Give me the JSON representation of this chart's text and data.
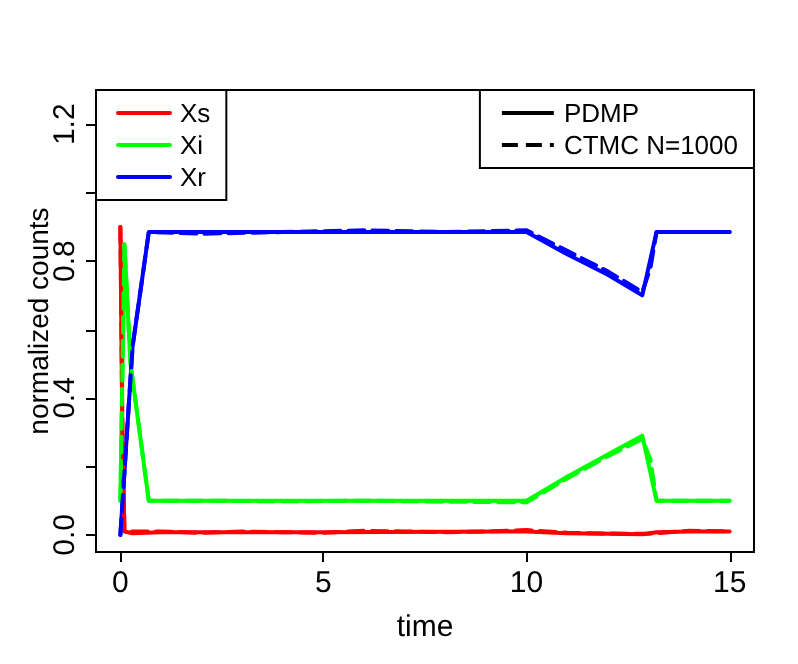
{
  "chart_data": {
    "type": "line",
    "xlabel": "time",
    "ylabel": "normalized counts",
    "xlim": [
      -0.6,
      15.6
    ],
    "xticks": [
      0,
      5,
      10,
      15
    ],
    "ylim": [
      -0.05,
      1.3
    ],
    "yticks": [
      {
        "value": 0,
        "label": "0.0"
      },
      {
        "value": 0.2,
        "label": null
      },
      0.4,
      {
        "value": 0.6,
        "label": null
      },
      0.8,
      {
        "value": 1.0,
        "label": null
      },
      1.2
    ],
    "grid": false,
    "legend": "top left",
    "marker": "none",
    "annotations": [
      "PDMP",
      "CTMC N=1000"
    ],
    "series": [
      {
        "name": "Xs",
        "color": "#ff0000",
        "line_style": "solid",
        "x": [
          0,
          0.05,
          0.1,
          0.3,
          1,
          5,
          10,
          11,
          12,
          12.85,
          13.2,
          14,
          15
        ],
        "values": [
          0.9,
          0.3,
          0.01,
          0.005,
          0.008,
          0.008,
          0.01,
          0.005,
          0.003,
          0.002,
          0.008,
          0.01,
          0.01
        ]
      },
      {
        "name": "Xi",
        "color": "#00ff00",
        "line_style": "solid",
        "x": [
          0,
          0.1,
          0.25,
          0.7,
          5,
          10,
          11,
          12,
          12.85,
          13.2,
          15
        ],
        "values": [
          0.1,
          0.85,
          0.5,
          0.1,
          0.1,
          0.1,
          0.17,
          0.235,
          0.29,
          0.1,
          0.1
        ]
      },
      {
        "name": "Xr",
        "color": "#0000ff",
        "line_style": "solid",
        "x": [
          0,
          0.3,
          0.7,
          10,
          11,
          12,
          12.85,
          13.2,
          15
        ],
        "values": [
          0,
          0.55,
          0.885,
          0.885,
          0.82,
          0.76,
          0.7,
          0.885,
          0.885
        ]
      },
      {
        "color": "#ff0000",
        "line_style": "dashed",
        "x": [
          0,
          0.05,
          0.1,
          1,
          2,
          3,
          4,
          5,
          6,
          7,
          8,
          9,
          10,
          11,
          12,
          13,
          14,
          15
        ],
        "values": [
          0.9,
          0.3,
          0.01,
          0.01,
          0.006,
          0.01,
          0.008,
          0.006,
          0.012,
          0.01,
          0.008,
          0.01,
          0.014,
          0.006,
          0.004,
          0.003,
          0.012,
          0.01
        ]
      },
      {
        "color": "#00ff00",
        "line_style": "dashed",
        "x": [
          0,
          0.1,
          0.25,
          0.7,
          2,
          4,
          6,
          8,
          10,
          11,
          12,
          12.85,
          13.05,
          13.2,
          15
        ],
        "values": [
          0.1,
          0.85,
          0.5,
          0.1,
          0.1,
          0.098,
          0.1,
          0.097,
          0.095,
          0.165,
          0.23,
          0.28,
          0.22,
          0.1,
          0.1
        ]
      },
      {
        "color": "#0000ff",
        "line_style": "dashed",
        "x": [
          0,
          0.3,
          0.7,
          2,
          4,
          6,
          8,
          10,
          11,
          12,
          12.85,
          13.05,
          13.2,
          15
        ],
        "values": [
          0,
          0.55,
          0.885,
          0.88,
          0.885,
          0.89,
          0.885,
          0.89,
          0.83,
          0.77,
          0.71,
          0.78,
          0.885,
          0.885
        ]
      }
    ]
  }
}
